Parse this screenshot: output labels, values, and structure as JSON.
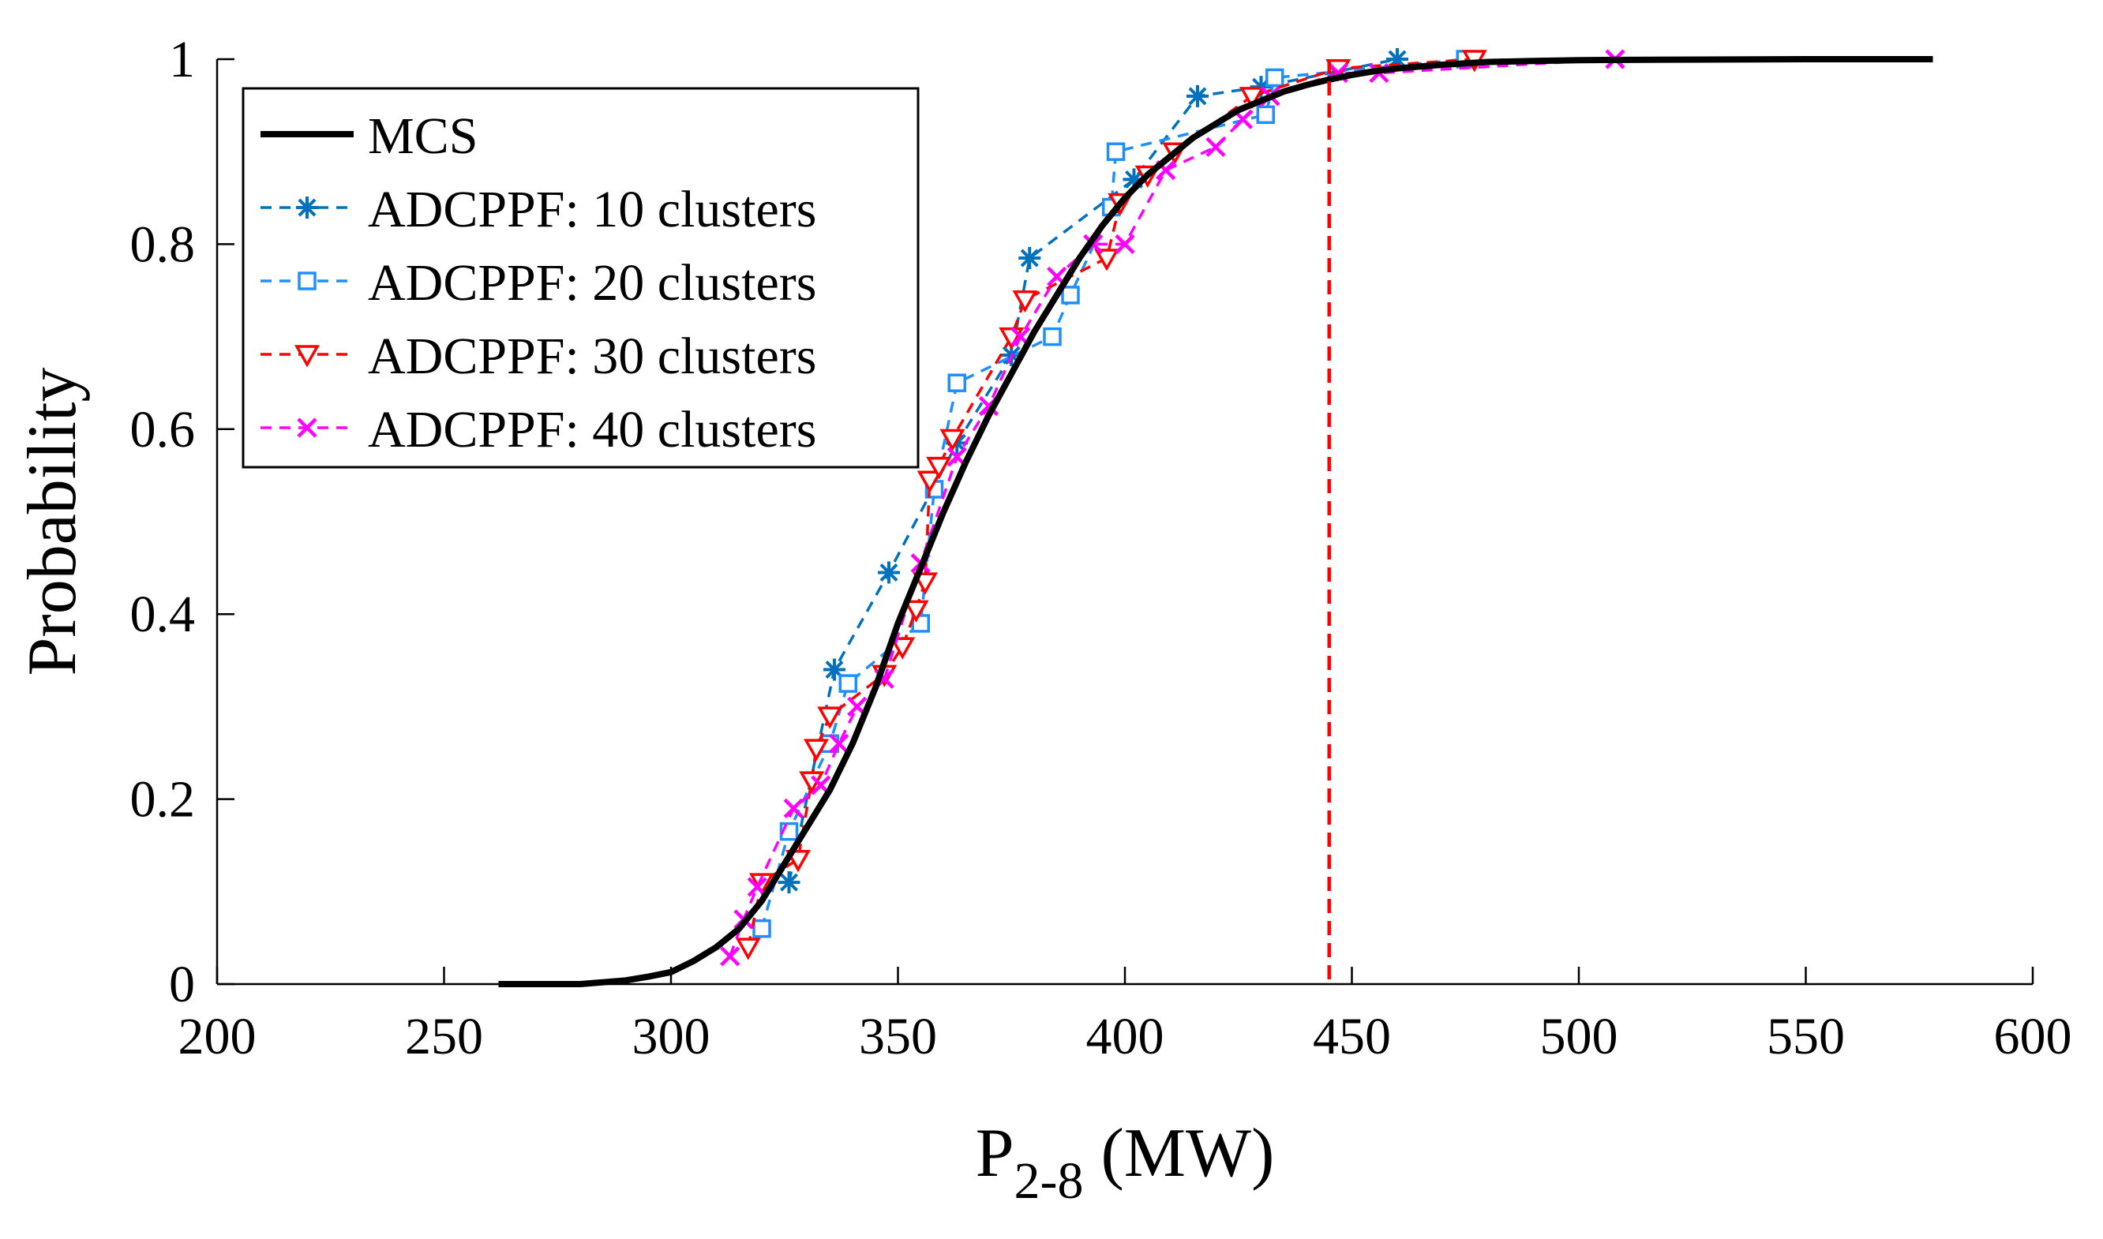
{
  "chart_data": {
    "type": "line",
    "title": "",
    "xlabel_main": "P",
    "xlabel_sub": "2-8",
    "xlabel_unit": " (MW)",
    "ylabel": "Probability",
    "xlim": [
      200,
      600
    ],
    "ylim": [
      0,
      1
    ],
    "x_ticks": [
      200,
      250,
      300,
      350,
      400,
      450,
      500,
      550,
      600
    ],
    "x_tick_labels": [
      "200",
      "250",
      "300",
      "350",
      "400",
      "450",
      "500",
      "550",
      "600"
    ],
    "y_ticks": [
      0,
      0.2,
      0.4,
      0.6,
      0.8,
      1
    ],
    "y_tick_labels": [
      "0",
      "0.2",
      "0.4",
      "0.6",
      "0.8",
      "1"
    ],
    "grid": false,
    "legend_position": "top-left",
    "threshold": {
      "x": 445,
      "color": "#ff0000",
      "style": "dashed"
    },
    "series": [
      {
        "name": "MCS",
        "color": "#000000",
        "style": "solid",
        "marker": "none",
        "x": [
          262,
          270,
          280,
          285,
          290,
          295,
          300,
          305,
          310,
          315,
          320,
          325,
          330,
          335,
          340,
          345,
          350,
          355,
          360,
          365,
          370,
          375,
          380,
          385,
          390,
          395,
          400,
          405,
          410,
          415,
          420,
          425,
          430,
          435,
          440,
          445,
          450,
          455,
          460,
          470,
          480,
          490,
          500,
          520,
          550,
          578
        ],
        "y": [
          0,
          0,
          0,
          0.002,
          0.004,
          0.008,
          0.013,
          0.025,
          0.04,
          0.06,
          0.09,
          0.13,
          0.17,
          0.21,
          0.26,
          0.32,
          0.39,
          0.45,
          0.51,
          0.565,
          0.615,
          0.66,
          0.705,
          0.745,
          0.785,
          0.82,
          0.85,
          0.875,
          0.895,
          0.915,
          0.93,
          0.945,
          0.955,
          0.965,
          0.972,
          0.978,
          0.983,
          0.987,
          0.99,
          0.994,
          0.997,
          0.998,
          0.999,
          0.9995,
          1.0,
          1.0
        ]
      },
      {
        "name": "ADCPPF: 10 clusters",
        "color": "#0072bd",
        "style": "dashed",
        "marker": "asterisk",
        "x": [
          326,
          336,
          348,
          363,
          375,
          379,
          402,
          416,
          430,
          460
        ],
        "y": [
          0.11,
          0.34,
          0.445,
          0.585,
          0.68,
          0.785,
          0.87,
          0.96,
          0.97,
          1.0
        ]
      },
      {
        "name": "ADCPPF: 20 clusters",
        "color": "#1f8fff",
        "style": "dashed",
        "marker": "square",
        "x": [
          320,
          326,
          335,
          339,
          355,
          358,
          363,
          384,
          388,
          397,
          398,
          431,
          433,
          475
        ],
        "y": [
          0.06,
          0.165,
          0.26,
          0.325,
          0.39,
          0.535,
          0.65,
          0.7,
          0.745,
          0.84,
          0.9,
          0.94,
          0.98,
          1.0
        ]
      },
      {
        "name": "ADCPPF: 30 clusters",
        "color": "#ff0000",
        "style": "dashed",
        "marker": "triangle-down",
        "x": [
          317,
          320,
          328,
          331,
          332,
          335,
          347,
          351,
          354,
          356,
          357,
          359,
          362,
          375,
          378,
          396,
          399,
          405,
          411,
          428,
          447,
          477
        ],
        "y": [
          0.04,
          0.11,
          0.135,
          0.22,
          0.255,
          0.29,
          0.335,
          0.365,
          0.405,
          0.435,
          0.545,
          0.56,
          0.59,
          0.7,
          0.74,
          0.785,
          0.845,
          0.875,
          0.9,
          0.96,
          0.99,
          1.0
        ]
      },
      {
        "name": "ADCPPF: 40 clusters",
        "color": "#ff00ff",
        "style": "dashed",
        "marker": "cross",
        "x": [
          313,
          316,
          319,
          327,
          333,
          337,
          341,
          347,
          355,
          363,
          370,
          377,
          385,
          393,
          400,
          409,
          420,
          426,
          432,
          447,
          456,
          508
        ],
        "y": [
          0.03,
          0.07,
          0.105,
          0.19,
          0.215,
          0.26,
          0.3,
          0.33,
          0.455,
          0.57,
          0.625,
          0.7,
          0.765,
          0.8,
          0.8,
          0.88,
          0.905,
          0.935,
          0.96,
          0.985,
          0.985,
          1.0
        ]
      }
    ]
  }
}
